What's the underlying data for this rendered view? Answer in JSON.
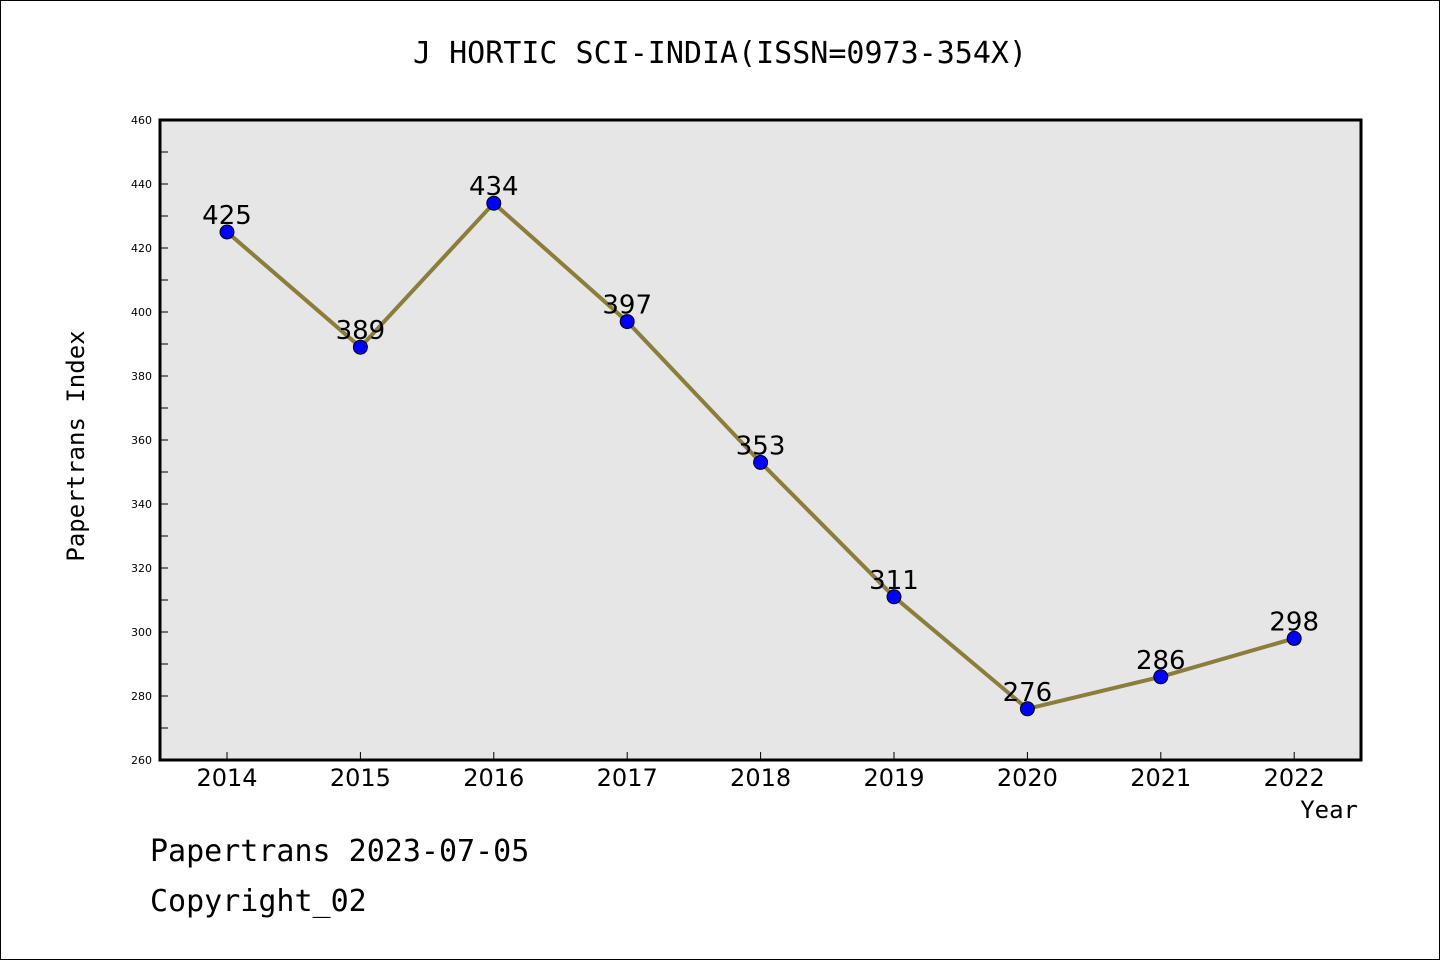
{
  "title": "J HORTIC SCI-INDIA(ISSN=0973-354X)",
  "footer": {
    "line1": "Papertrans 2023-07-05",
    "line2": "Copyright_02"
  },
  "chart_data": {
    "type": "line",
    "title": "J HORTIC SCI-INDIA(ISSN=0973-354X)",
    "xlabel": "Year",
    "ylabel": "Papertrans Index",
    "categories": [
      "2014",
      "2015",
      "2016",
      "2017",
      "2018",
      "2019",
      "2020",
      "2021",
      "2022"
    ],
    "series": [
      {
        "values": [
          425,
          389,
          434,
          397,
          353,
          311,
          276,
          286,
          298
        ]
      }
    ],
    "ylim": [
      260,
      460
    ],
    "yticks": [
      260,
      280,
      300,
      320,
      340,
      360,
      380,
      400,
      420,
      440,
      460
    ],
    "grid": false,
    "line_color": "#8b7d3a",
    "marker_color": "#0000ff",
    "plot_background": "#e6e6e6"
  }
}
